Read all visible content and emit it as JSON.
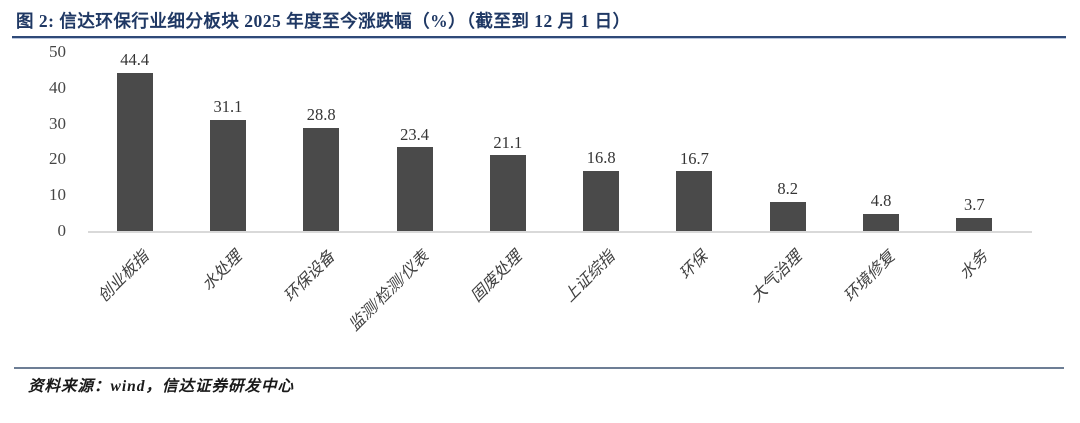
{
  "header": {
    "title": "图 2:  信达环保行业细分板块 2025 年度至今涨跌幅（%）（截至到 12 月 1 日）"
  },
  "chart_data": {
    "type": "bar",
    "title": "信达环保行业细分板块 2025 年度至今涨跌幅（%）（截至到 12 月 1 日）",
    "categories": [
      "创业板指",
      "水处理",
      "环保设备",
      "监测/检测/仪表",
      "固废处理",
      "上证综指",
      "环保",
      "大气治理",
      "环境修复",
      "水务"
    ],
    "values": [
      44.4,
      31.1,
      28.8,
      23.4,
      21.1,
      16.8,
      16.7,
      8.2,
      4.8,
      3.7
    ],
    "xlabel": "",
    "ylabel": "",
    "ylim": [
      0,
      50
    ],
    "yticks": [
      0,
      10,
      20,
      30,
      40,
      50
    ],
    "grid": false,
    "legend": "none",
    "bar_color": "#4a4a4a",
    "data_labels": true,
    "x_label_rotation_deg": 45
  },
  "footer": {
    "source": "资料来源：wind，信达证券研发中心"
  },
  "colors": {
    "title_text": "#1f3864",
    "title_rule": "#2f4a78",
    "bar": "#4a4a4a",
    "axis_line": "#d9d9d9",
    "tick_text": "#454545",
    "value_text": "#353535",
    "footer_rule": "#6d7e95",
    "footer_text": "#1a1a1a"
  }
}
